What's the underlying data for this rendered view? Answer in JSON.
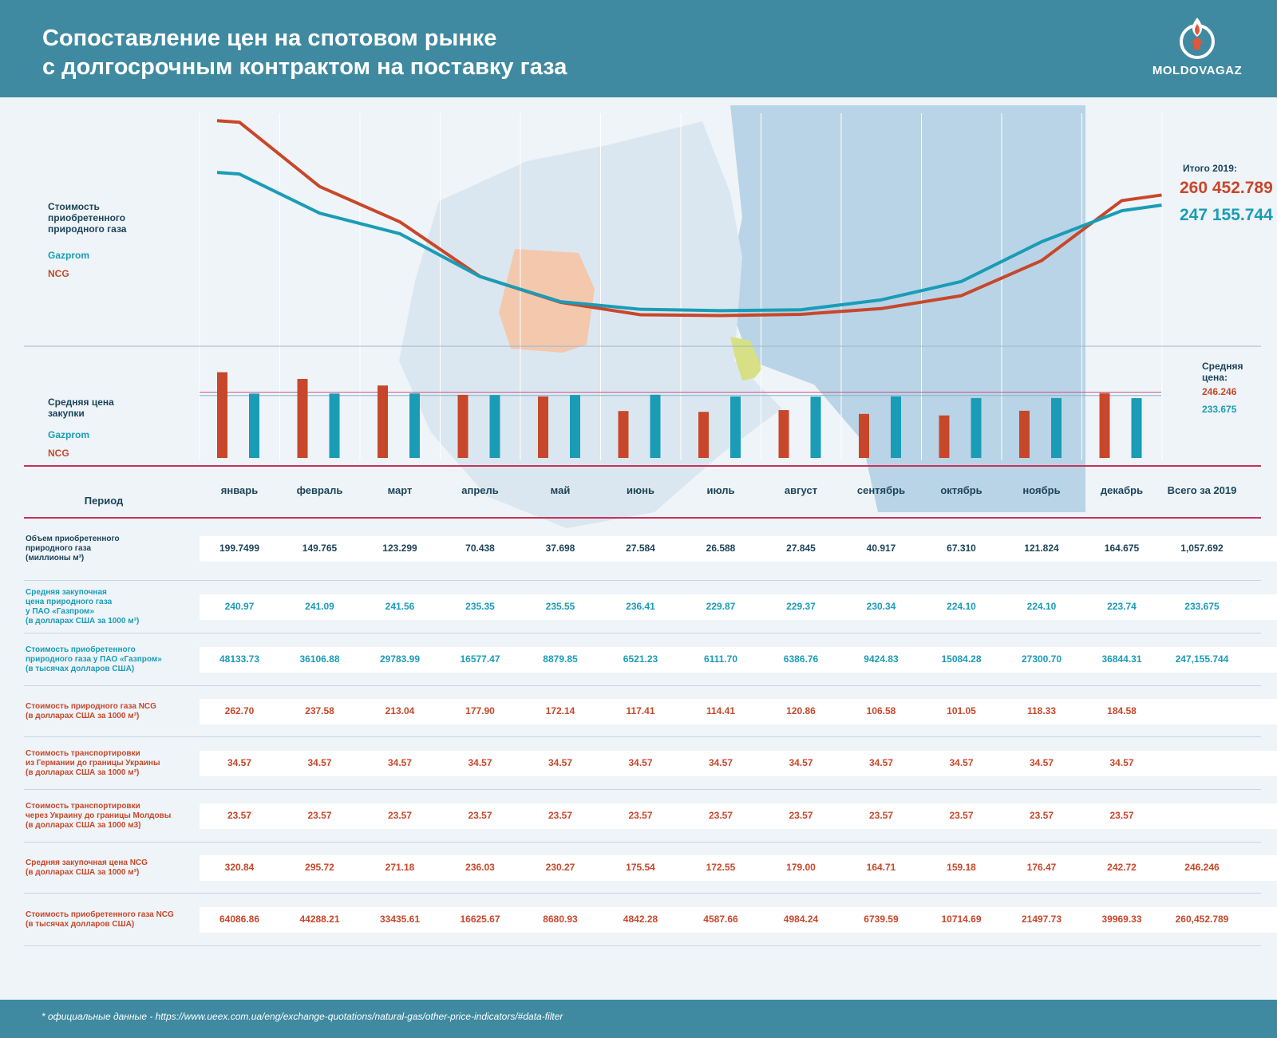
{
  "header": {
    "title_line1": "Сопоставление цен на спотовом рынке",
    "title_line2": "с долгосрочным контрактом на поставку газа",
    "logo_text": "MOLDOVAGAZ"
  },
  "colors": {
    "ncg": "#c8472a",
    "gazprom": "#1a9cb6",
    "dark": "#1d4459",
    "header": "#3f8aa1",
    "divider": "#c8325a"
  },
  "legend_cost": {
    "line1": "Стоимость",
    "line2": "приобретенного",
    "line3": "природного газа",
    "gazprom": "Gazprom",
    "ncg": "NCG"
  },
  "legend_avg": {
    "line1": "Средняя цена",
    "line2": "закупки",
    "gazprom": "Gazprom",
    "ncg": "NCG"
  },
  "totals": {
    "label": "Итого  2019:",
    "ncg": "260 452.789",
    "gazprom": "247 155.744"
  },
  "average": {
    "line1": "Средняя",
    "line2": "цена:",
    "ncg": "246.246",
    "gazprom": "233.675"
  },
  "chart_data": [
    {
      "type": "line",
      "title": "Стоимость приобретенного природного газа",
      "categories": [
        "январь",
        "февраль",
        "март",
        "апрель",
        "май",
        "июнь",
        "июль",
        "август",
        "сентябрь",
        "октябрь",
        "ноябрь",
        "декабрь"
      ],
      "series": [
        {
          "name": "Gazprom",
          "values": [
            48133.73,
            36106.88,
            29783.99,
            16577.47,
            8879.85,
            6521.23,
            6111.7,
            6386.76,
            9424.83,
            15084.28,
            27300.7,
            36844.31
          ]
        },
        {
          "name": "NCG",
          "values": [
            64086.86,
            44288.21,
            33435.61,
            16625.67,
            8680.93,
            4842.28,
            4587.66,
            4984.24,
            6739.59,
            10714.69,
            21497.73,
            39969.33
          ]
        }
      ]
    },
    {
      "type": "bar",
      "title": "Средняя цена закупки",
      "categories": [
        "январь",
        "февраль",
        "март",
        "апрель",
        "май",
        "июнь",
        "июль",
        "август",
        "сентябрь",
        "октябрь",
        "ноябрь",
        "декабрь"
      ],
      "series": [
        {
          "name": "NCG",
          "values": [
            320.84,
            295.72,
            271.18,
            236.03,
            230.27,
            175.54,
            172.55,
            179.0,
            164.71,
            159.18,
            176.47,
            242.72
          ]
        },
        {
          "name": "Gazprom",
          "values": [
            240.97,
            241.09,
            241.56,
            235.35,
            235.55,
            236.41,
            229.87,
            229.37,
            230.34,
            224.1,
            224.1,
            223.74
          ]
        }
      ],
      "reference_lines": {
        "NCG": 246.246,
        "Gazprom": 233.675
      }
    }
  ],
  "table": {
    "period_label": "Период",
    "months": [
      "январь",
      "февраль",
      "март",
      "апрель",
      "май",
      "июнь",
      "июль",
      "август",
      "сентябрь",
      "октябрь",
      "ноябрь",
      "декабрь",
      "Всего за  2019"
    ],
    "rows": [
      {
        "label": [
          "Объем приобретенного",
          "природного газа",
          "(миллионы м³)"
        ],
        "color": "dark",
        "values": [
          "199.7499",
          "149.765",
          "123.299",
          "70.438",
          "37.698",
          "27.584",
          "26.588",
          "27.845",
          "40.917",
          "67.310",
          "121.824",
          "164.675",
          "1,057.692"
        ]
      },
      {
        "label": [
          "Средняя закупочная",
          "цена природного газа",
          "у ПАО «Газпром»",
          "(в долларах США за 1000 м³)"
        ],
        "color": "blue",
        "values": [
          "240.97",
          "241.09",
          "241.56",
          "235.35",
          "235.55",
          "236.41",
          "229.87",
          "229.37",
          "230.34",
          "224.10",
          "224.10",
          "223.74",
          "233.675"
        ]
      },
      {
        "label": [
          "Стоимость приобретенного",
          "природного газа у ПАО «Газпром»",
          "(в тысячах долларов США)"
        ],
        "color": "blue",
        "values": [
          "48133.73",
          "36106.88",
          "29783.99",
          "16577.47",
          "8879.85",
          "6521.23",
          "6111.70",
          "6386.76",
          "9424.83",
          "15084.28",
          "27300.70",
          "36844.31",
          "247,155.744"
        ]
      },
      {
        "label": [
          "Стоимость природного газа NCG",
          "(в долларах США за 1000 м³)"
        ],
        "color": "red",
        "values": [
          "262.70",
          "237.58",
          "213.04",
          "177.90",
          "172.14",
          "117.41",
          "114.41",
          "120.86",
          "106.58",
          "101.05",
          "118.33",
          "184.58",
          ""
        ]
      },
      {
        "label": [
          "Стоимость транспортировки",
          "из Германии до границы Украины",
          "(в долларах США за 1000 м³)"
        ],
        "color": "red",
        "values": [
          "34.57",
          "34.57",
          "34.57",
          "34.57",
          "34.57",
          "34.57",
          "34.57",
          "34.57",
          "34.57",
          "34.57",
          "34.57",
          "34.57",
          ""
        ]
      },
      {
        "label": [
          "Стоимость транспортировки",
          "через Украину до границы Молдовы",
          "(в долларах США за 1000 м3)"
        ],
        "color": "red",
        "values": [
          "23.57",
          "23.57",
          "23.57",
          "23.57",
          "23.57",
          "23.57",
          "23.57",
          "23.57",
          "23.57",
          "23.57",
          "23.57",
          "23.57",
          ""
        ]
      },
      {
        "label": [
          "Средняя закупочная цена NCG",
          "(в долларах США за 1000 м³)"
        ],
        "color": "red",
        "values": [
          "320.84",
          "295.72",
          "271.18",
          "236.03",
          "230.27",
          "175.54",
          "172.55",
          "179.00",
          "164.71",
          "159.18",
          "176.47",
          "242.72",
          "246.246"
        ]
      },
      {
        "label": [
          "Стоимость приобретенного газа NCG",
          "(в тысячах долларов США)"
        ],
        "color": "red",
        "values": [
          "64086.86",
          "44288.21",
          "33435.61",
          "16625.67",
          "8680.93",
          "4842.28",
          "4587.66",
          "4984.24",
          "6739.59",
          "10714.69",
          "21497.73",
          "39969.33",
          "260,452.789"
        ]
      }
    ]
  },
  "footer": {
    "text": "* официальные данные - https://www.ueex.com.ua/eng/exchange-quotations/natural-gas/other-price-indicators/#data-filter"
  }
}
